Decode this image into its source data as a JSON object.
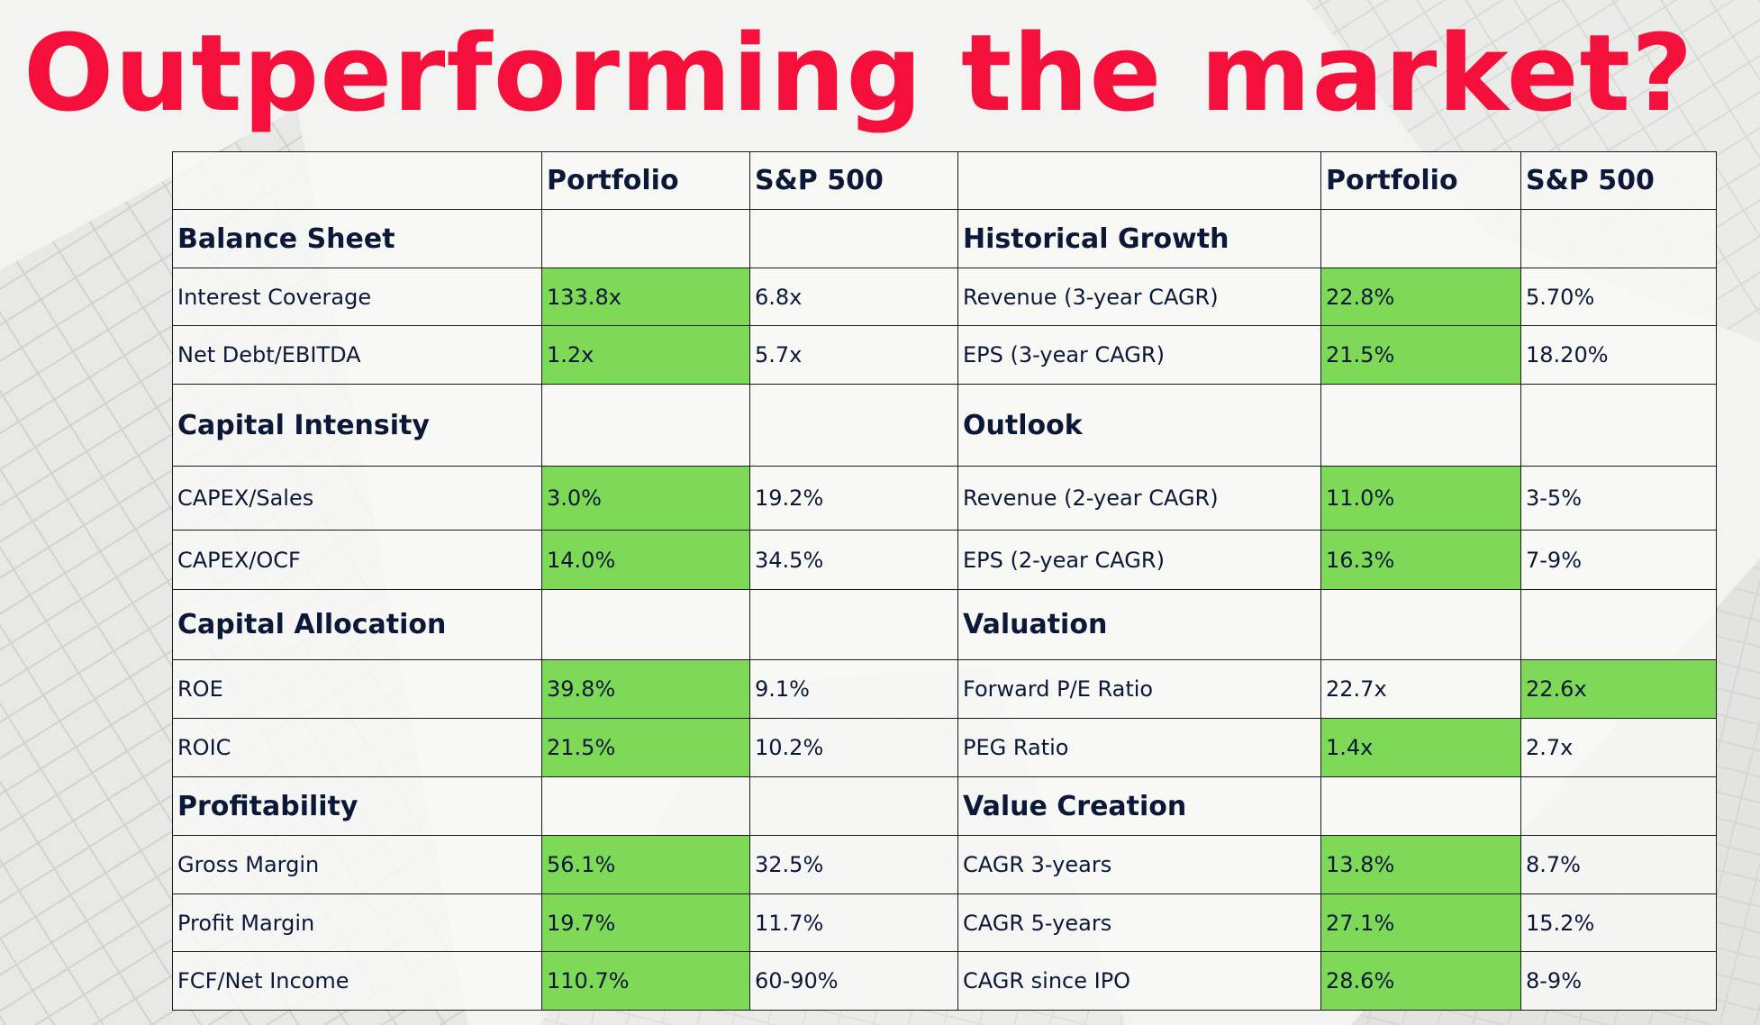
{
  "title": "Outperforming the market?",
  "colors": {
    "title": "#f5103c",
    "highlight": "#7ed957",
    "text": "#0c1838",
    "border": "#1a1a1a"
  },
  "columns": {
    "left_portfolio": "Portfolio",
    "left_sp500": "S&P 500",
    "right_portfolio": "Portfolio",
    "right_sp500": "S&P 500"
  },
  "rows": [
    {
      "section": true,
      "left": {
        "label": "Balance Sheet"
      },
      "right": {
        "label": "Historical Growth"
      }
    },
    {
      "left": {
        "label": "Interest Coverage",
        "portfolio": "133.8x",
        "sp500": "6.8x",
        "best": "portfolio"
      },
      "right": {
        "label": "Revenue (3-year CAGR)",
        "portfolio": "22.8%",
        "sp500": "5.70%",
        "best": "portfolio"
      }
    },
    {
      "left": {
        "label": "Net Debt/EBITDA",
        "portfolio": "1.2x",
        "sp500": "5.7x",
        "best": "portfolio"
      },
      "right": {
        "label": "EPS (3-year CAGR)",
        "portfolio": "21.5%",
        "sp500": "18.20%",
        "best": "portfolio"
      }
    },
    {
      "section": true,
      "left": {
        "label": "Capital Intensity"
      },
      "right": {
        "label": "Outlook"
      }
    },
    {
      "left": {
        "label": "CAPEX/Sales",
        "portfolio": "3.0%",
        "sp500": "19.2%",
        "best": "portfolio"
      },
      "right": {
        "label": "Revenue (2-year CAGR)",
        "portfolio": "11.0%",
        "sp500": "3-5%",
        "best": "portfolio"
      }
    },
    {
      "left": {
        "label": "CAPEX/OCF",
        "portfolio": "14.0%",
        "sp500": "34.5%",
        "best": "portfolio"
      },
      "right": {
        "label": "EPS (2-year CAGR)",
        "portfolio": "16.3%",
        "sp500": "7-9%",
        "best": "portfolio"
      }
    },
    {
      "section": true,
      "left": {
        "label": "Capital Allocation"
      },
      "right": {
        "label": "Valuation"
      }
    },
    {
      "left": {
        "label": "ROE",
        "portfolio": "39.8%",
        "sp500": "9.1%",
        "best": "portfolio"
      },
      "right": {
        "label": "Forward P/E Ratio",
        "portfolio": "22.7x",
        "sp500": "22.6x",
        "best": "sp500"
      }
    },
    {
      "left": {
        "label": "ROIC",
        "portfolio": "21.5%",
        "sp500": "10.2%",
        "best": "portfolio"
      },
      "right": {
        "label": "PEG Ratio",
        "portfolio": "1.4x",
        "sp500": "2.7x",
        "best": "portfolio"
      }
    },
    {
      "section": true,
      "left": {
        "label": "Profitability"
      },
      "right": {
        "label": "Value Creation"
      }
    },
    {
      "left": {
        "label": "Gross Margin",
        "portfolio": "56.1%",
        "sp500": "32.5%",
        "best": "portfolio"
      },
      "right": {
        "label": "CAGR 3-years",
        "portfolio": "13.8%",
        "sp500": "8.7%",
        "best": "portfolio"
      }
    },
    {
      "left": {
        "label": "Profit Margin",
        "portfolio": "19.7%",
        "sp500": "11.7%",
        "best": "portfolio"
      },
      "right": {
        "label": "CAGR 5-years",
        "portfolio": "27.1%",
        "sp500": "15.2%",
        "best": "portfolio"
      }
    },
    {
      "left": {
        "label": "FCF/Net Income",
        "portfolio": "110.7%",
        "sp500": "60-90%",
        "best": "portfolio"
      },
      "right": {
        "label": "CAGR since IPO",
        "portfolio": "28.6%",
        "sp500": "8-9%",
        "best": "portfolio"
      }
    }
  ]
}
